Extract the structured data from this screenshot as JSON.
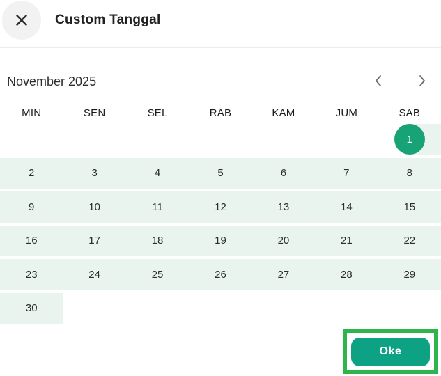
{
  "header": {
    "title": "Custom Tanggal"
  },
  "calendar": {
    "month_label": "November 2025",
    "weekdays": [
      "MIN",
      "SEN",
      "SEL",
      "RAB",
      "KAM",
      "JUM",
      "SAB"
    ],
    "weeks": [
      {
        "highlight": "from-saturday",
        "selected": "1",
        "days": [
          "",
          "",
          "",
          "",
          "",
          "",
          "1"
        ]
      },
      {
        "highlight": "full",
        "selected": "",
        "days": [
          "2",
          "3",
          "4",
          "5",
          "6",
          "7",
          "8"
        ]
      },
      {
        "highlight": "full",
        "selected": "",
        "days": [
          "9",
          "10",
          "11",
          "12",
          "13",
          "14",
          "15"
        ]
      },
      {
        "highlight": "full",
        "selected": "",
        "days": [
          "16",
          "17",
          "18",
          "19",
          "20",
          "21",
          "22"
        ]
      },
      {
        "highlight": "full",
        "selected": "",
        "days": [
          "23",
          "24",
          "25",
          "26",
          "27",
          "28",
          "29"
        ]
      },
      {
        "highlight": "first-cell",
        "selected": "",
        "days": [
          "30",
          "",
          "",
          "",
          "",
          "",
          ""
        ]
      }
    ]
  },
  "footer": {
    "ok_label": "Oke"
  },
  "colors": {
    "selected_circle": "#18A377",
    "button_green": "#0EA284",
    "row_highlight": "#E9F4EF",
    "focus_border": "#2DB44A",
    "icon_gray": "#6E6E6E",
    "close_circle_bg": "#F2F2F2"
  }
}
